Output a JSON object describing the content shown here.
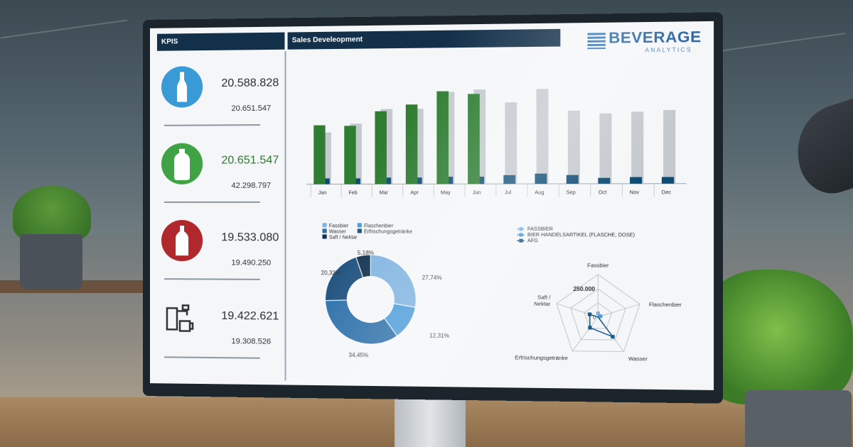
{
  "dashboard": {
    "kpi_header": "KPIS",
    "sales_header": "Sales Develeopment",
    "logo": {
      "title": "BEVERAGE",
      "subtitle": "ANALYTICS"
    }
  },
  "kpis": [
    {
      "main": "20.588.828",
      "sub": "20.651.547",
      "icon": "glass-bottle-icon",
      "color": "#3a9ad6",
      "main_color": "#2a2f33"
    },
    {
      "main": "20.651.547",
      "sub": "42.298.797",
      "icon": "plastic-bottle-icon",
      "color": "#3fa346",
      "main_color": "#2d7a2e"
    },
    {
      "main": "19.533.080",
      "sub": "19.490.250",
      "icon": "bottle-icon",
      "color": "#b0282b",
      "main_color": "#2a2f33"
    },
    {
      "main": "19.422.621",
      "sub": "19.308.526",
      "icon": "beer-tap-icon",
      "color": "#333333",
      "main_color": "#2a2f33"
    }
  ],
  "chart_data": [
    {
      "type": "bar",
      "categories": [
        "Jan",
        "Feb",
        "Mar",
        "Apr",
        "May",
        "Jun",
        "Jul",
        "Aug",
        "Sep",
        "Oct",
        "Nov",
        "Dec"
      ],
      "series": [
        {
          "values": [
            82,
            81,
            101,
            110,
            128,
            124,
            null,
            null,
            null,
            null,
            null,
            null
          ],
          "color": "#2e7d32"
        },
        {
          "values": [
            72,
            84,
            104,
            104,
            127,
            130,
            112,
            130,
            100,
            96,
            98,
            100
          ],
          "color": "#c4c9ce"
        },
        {
          "values": [
            8,
            8,
            9,
            9,
            10,
            10,
            12,
            14,
            12,
            8,
            9,
            9
          ],
          "color": "#0f4c73"
        }
      ],
      "ylim": [
        0,
        140
      ]
    },
    {
      "type": "pie",
      "style": "donut",
      "legend": [
        "Fassbier",
        "Flaschenbier",
        "Wasser",
        "Erfrischungsgetränke",
        "Saft / Nektar"
      ],
      "slices": [
        {
          "name": "Fassbier",
          "value": 27.74,
          "label": "27,74%",
          "color": "#7fb3e0"
        },
        {
          "name": "Flaschenbier",
          "value": 12.31,
          "label": "12,31%",
          "color": "#4a9bd8"
        },
        {
          "name": "Wasser",
          "value": 34.45,
          "label": "34,45%",
          "color": "#2a6ea8"
        },
        {
          "name": "Erfrischungsgetränke",
          "value": 20.32,
          "label": "20,32%",
          "color": "#1b4f7d"
        },
        {
          "name": "Saft / Nektar",
          "value": 5.18,
          "label": "5,18%",
          "color": "#0f2f4d"
        }
      ]
    },
    {
      "type": "radar",
      "axes": [
        "Fassbier",
        "Flaschenbier",
        "Wasser",
        "Erfrischungsgetränke",
        "Saft / Nektar"
      ],
      "tick_labels": [
        "250.000",
        "0"
      ],
      "series": [
        {
          "name": "FASSBIER",
          "values": [
            30000,
            0,
            0,
            0,
            0
          ],
          "color": "#7fb3e0"
        },
        {
          "name": "BIER HANDELSARTIKEL (FLASCHE, DOSE)",
          "values": [
            0,
            20000,
            0,
            0,
            0
          ],
          "color": "#4a9bd8"
        },
        {
          "name": "AFG",
          "values": [
            0,
            0,
            200000,
            110000,
            70000
          ],
          "color": "#1b5a8a"
        }
      ],
      "rmax": 350000
    }
  ]
}
